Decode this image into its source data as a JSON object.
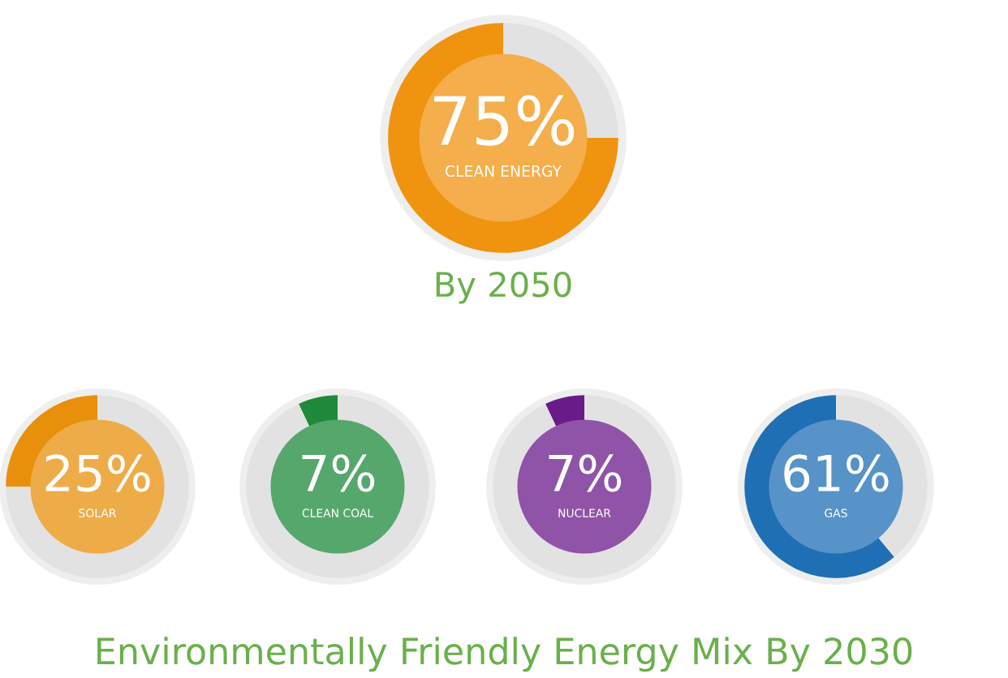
{
  "chart_data": [
    {
      "type": "donut",
      "title": "By 2050",
      "subtitle": "CLEAN ENERGY",
      "categories": [
        null,
        null
      ],
      "values": [
        75,
        25
      ],
      "colors": [
        "#f0930f",
        "#e2e2e2"
      ],
      "value_labels": [
        "75%",
        null
      ]
    },
    {
      "type": "donut",
      "subtitle": "SOLAR",
      "categories": [
        null,
        null
      ],
      "values": [
        25,
        75
      ],
      "colors": [
        "#e8900c",
        "#e2e2e2"
      ],
      "value_labels": [
        "25%",
        null
      ]
    },
    {
      "type": "donut",
      "subtitle": "CLEAN COAL",
      "categories": [
        null,
        null
      ],
      "values": [
        7,
        93
      ],
      "colors": [
        "#1e8a3a",
        "#e2e2e2"
      ],
      "value_labels": [
        "7%",
        null
      ]
    },
    {
      "type": "donut",
      "subtitle": "NUCLEAR",
      "categories": [
        null,
        null
      ],
      "values": [
        7,
        93
      ],
      "colors": [
        "#6a1b8a",
        "#e2e2e2"
      ],
      "value_labels": [
        "7%",
        null
      ]
    },
    {
      "type": "donut",
      "subtitle": "GAS",
      "categories": [
        null,
        null
      ],
      "values": [
        61,
        39
      ],
      "colors": [
        "#1f6fb5",
        "#e2e2e2"
      ],
      "value_labels": [
        "61%",
        null
      ],
      "annotations": [
        "Environmentally Friendly Energy Mix By 2030"
      ]
    }
  ]
}
